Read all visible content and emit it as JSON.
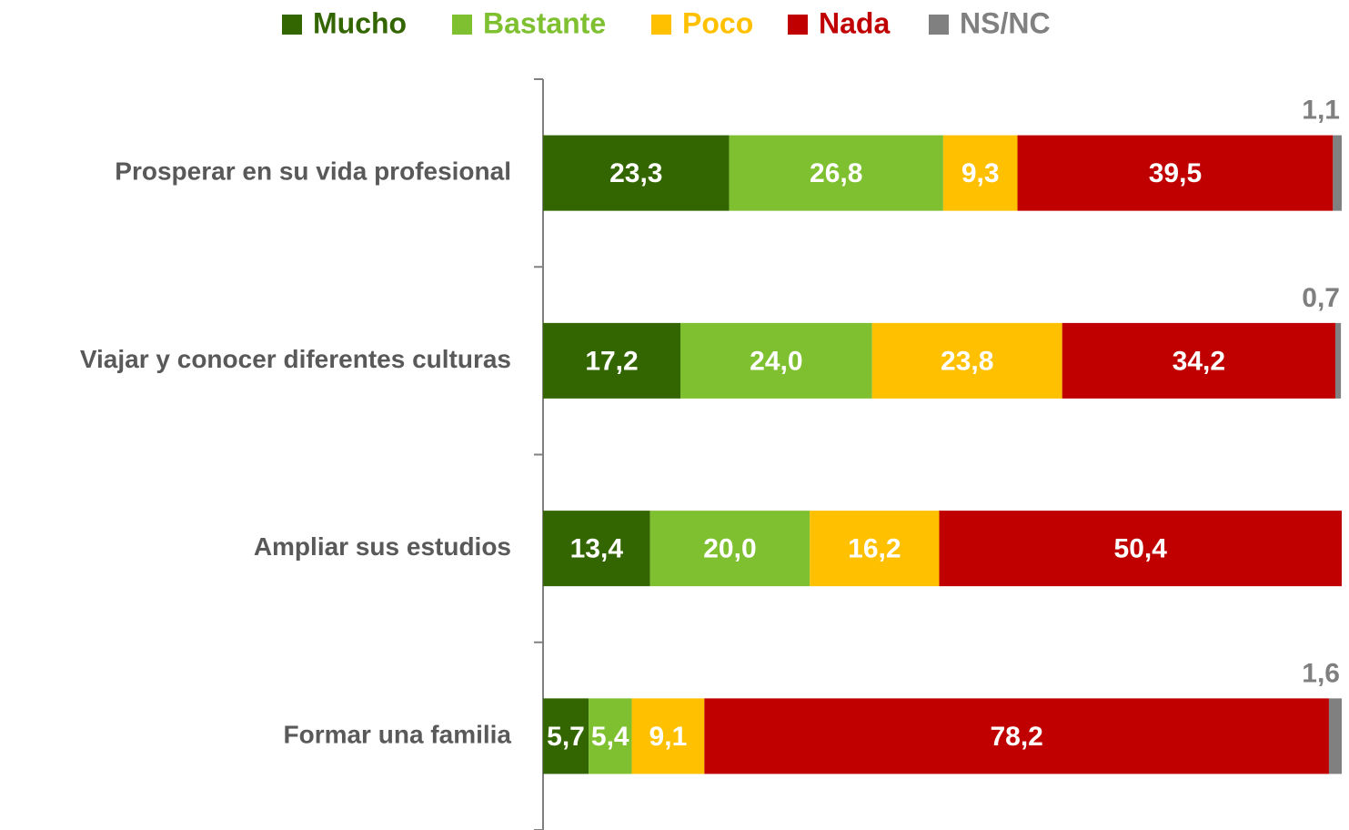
{
  "chart_data": {
    "type": "stacked_bar_horizontal",
    "categories": [
      "Prosperar en su vida profesional",
      "Viajar y conocer diferentes culturas",
      "Ampliar sus estudios",
      "Formar una familia"
    ],
    "series": [
      {
        "name": "Mucho",
        "color": "#336600",
        "values": [
          23.3,
          17.2,
          13.4,
          5.7
        ],
        "value_labels": [
          "23,3",
          "17,2",
          "13,4",
          "5,7"
        ]
      },
      {
        "name": "Bastante",
        "color": "#7fc031",
        "values": [
          26.8,
          24.0,
          20.0,
          5.4
        ],
        "value_labels": [
          "26,8",
          "24,0",
          "20,0",
          "5,4"
        ]
      },
      {
        "name": "Poco",
        "color": "#ffc000",
        "values": [
          9.3,
          23.8,
          16.2,
          9.1
        ],
        "value_labels": [
          "9,3",
          "23,8",
          "16,2",
          "9,1"
        ]
      },
      {
        "name": "Nada",
        "color": "#c00000",
        "values": [
          39.5,
          34.2,
          50.4,
          78.2
        ],
        "value_labels": [
          "39,5",
          "34,2",
          "50,4",
          "78,2"
        ]
      },
      {
        "name": "NS/NC",
        "color": "#808080",
        "values": [
          1.1,
          0.7,
          null,
          1.6
        ],
        "value_labels": [
          "1,1",
          "0,7",
          null,
          "1,6"
        ]
      }
    ],
    "xlim": [
      0,
      100
    ],
    "legend": "top"
  }
}
